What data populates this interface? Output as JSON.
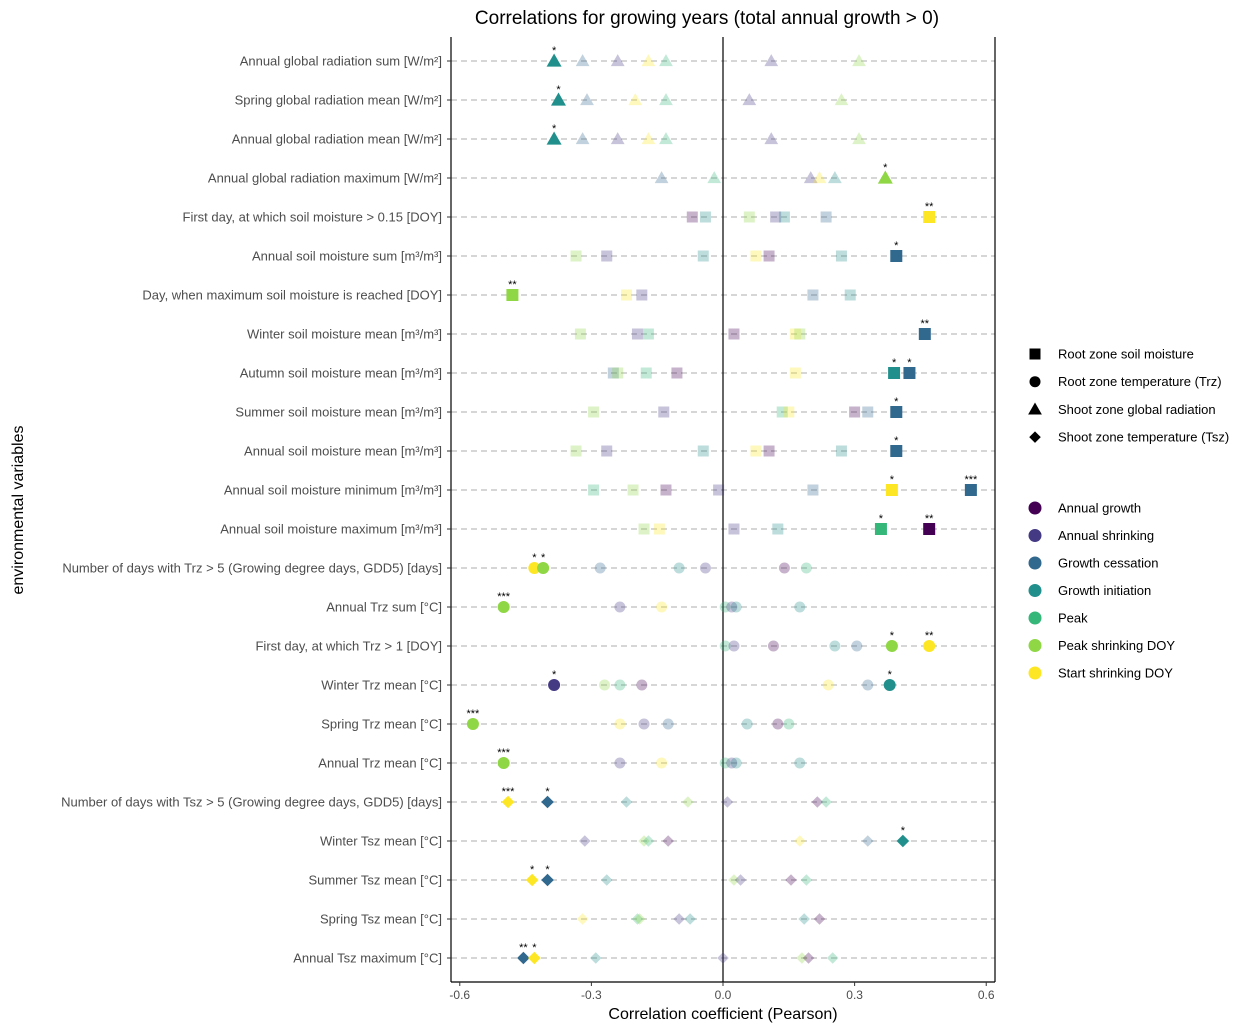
{
  "chart_data": {
    "type": "scatter",
    "title": "Correlations for growing years (total annual growth > 0)",
    "xlabel": "Correlation coefficient (Pearson)",
    "ylabel": "environmental variables",
    "xlim": [
      -0.62,
      0.62
    ],
    "xticks": [
      -0.6,
      -0.3,
      0.0,
      0.3,
      0.6
    ],
    "xtick_labels": [
      "-0.6",
      "-0.3",
      "0.0",
      "0.3",
      "0.6"
    ],
    "grid": "dashed horizontal lines per variable",
    "legend_position": "right",
    "shape_legend": [
      {
        "key": "square",
        "label": "Root zone soil moisture"
      },
      {
        "key": "circle",
        "label": "Root zone temperature (Trz)"
      },
      {
        "key": "triangle",
        "label": "Shoot zone global radiation"
      },
      {
        "key": "diamond",
        "label": "Shoot zone temperature (Tsz)"
      }
    ],
    "color_legend": [
      {
        "key": "ag",
        "label": "Annual growth",
        "color": "#440154"
      },
      {
        "key": "as",
        "label": "Annual shrinking",
        "color": "#443983"
      },
      {
        "key": "gc",
        "label": "Growth cessation",
        "color": "#31688E"
      },
      {
        "key": "gi",
        "label": "Growth initiation",
        "color": "#21908C"
      },
      {
        "key": "pk",
        "label": "Peak",
        "color": "#35B779"
      },
      {
        "key": "ps",
        "label": "Peak shrinking DOY",
        "color": "#8FD744"
      },
      {
        "key": "ss",
        "label": "Start shrinking DOY",
        "color": "#FDE725"
      }
    ],
    "variables": [
      {
        "label": "Annual global radiation sum [W/m²]",
        "shape": "triangle",
        "points": [
          {
            "x": -0.385,
            "c": "gi",
            "sig": "*"
          },
          {
            "x": -0.32,
            "c": "gc"
          },
          {
            "x": -0.24,
            "c": "as"
          },
          {
            "x": -0.17,
            "c": "ss"
          },
          {
            "x": -0.13,
            "c": "pk"
          },
          {
            "x": 0.11,
            "c": "as"
          },
          {
            "x": 0.31,
            "c": "ps"
          }
        ]
      },
      {
        "label": "Spring global radiation mean [W/m²]",
        "shape": "triangle",
        "points": [
          {
            "x": -0.375,
            "c": "gi",
            "sig": "*"
          },
          {
            "x": -0.31,
            "c": "gc"
          },
          {
            "x": -0.2,
            "c": "ss"
          },
          {
            "x": -0.13,
            "c": "pk"
          },
          {
            "x": 0.06,
            "c": "as"
          },
          {
            "x": 0.27,
            "c": "ps"
          }
        ]
      },
      {
        "label": "Annual global radiation mean [W/m²]",
        "shape": "triangle",
        "points": [
          {
            "x": -0.385,
            "c": "gi",
            "sig": "*"
          },
          {
            "x": -0.32,
            "c": "gc"
          },
          {
            "x": -0.24,
            "c": "as"
          },
          {
            "x": -0.17,
            "c": "ss"
          },
          {
            "x": -0.13,
            "c": "pk"
          },
          {
            "x": 0.11,
            "c": "as"
          },
          {
            "x": 0.31,
            "c": "ps"
          }
        ]
      },
      {
        "label": "Annual global radiation maximum [W/m²]",
        "shape": "triangle",
        "points": [
          {
            "x": -0.14,
            "c": "gc"
          },
          {
            "x": -0.02,
            "c": "pk"
          },
          {
            "x": 0.2,
            "c": "as"
          },
          {
            "x": 0.22,
            "c": "ss"
          },
          {
            "x": 0.255,
            "c": "gi"
          },
          {
            "x": 0.37,
            "c": "ps",
            "sig": "*"
          }
        ]
      },
      {
        "label": "First day, at which soil moisture > 0.15 [DOY]",
        "shape": "square",
        "points": [
          {
            "x": -0.07,
            "c": "ag"
          },
          {
            "x": -0.04,
            "c": "gi"
          },
          {
            "x": 0.06,
            "c": "ps"
          },
          {
            "x": 0.12,
            "c": "as"
          },
          {
            "x": 0.14,
            "c": "gi"
          },
          {
            "x": 0.235,
            "c": "gc"
          },
          {
            "x": 0.47,
            "c": "ss",
            "sig": "**"
          }
        ]
      },
      {
        "label": "Annual soil moisture sum [m³/m³]",
        "shape": "square",
        "points": [
          {
            "x": -0.335,
            "c": "ps"
          },
          {
            "x": -0.265,
            "c": "as"
          },
          {
            "x": -0.045,
            "c": "gi"
          },
          {
            "x": 0.075,
            "c": "ss"
          },
          {
            "x": 0.105,
            "c": "ag"
          },
          {
            "x": 0.27,
            "c": "gi"
          },
          {
            "x": 0.395,
            "c": "gc",
            "sig": "*"
          }
        ]
      },
      {
        "label": "Day, when maximum soil moisture is reached [DOY]",
        "shape": "square",
        "points": [
          {
            "x": -0.48,
            "c": "ps",
            "sig": "**"
          },
          {
            "x": -0.22,
            "c": "ss"
          },
          {
            "x": -0.185,
            "c": "as"
          },
          {
            "x": 0.205,
            "c": "gc"
          },
          {
            "x": 0.29,
            "c": "gi"
          }
        ]
      },
      {
        "label": "Winter soil moisture mean [m³/m³]",
        "shape": "square",
        "points": [
          {
            "x": -0.325,
            "c": "ps"
          },
          {
            "x": -0.195,
            "c": "as"
          },
          {
            "x": -0.17,
            "c": "pk"
          },
          {
            "x": 0.025,
            "c": "ag"
          },
          {
            "x": 0.165,
            "c": "ss"
          },
          {
            "x": 0.175,
            "c": "ps"
          },
          {
            "x": 0.46,
            "c": "gc",
            "sig": "**"
          }
        ]
      },
      {
        "label": "Autumn soil moisture mean [m³/m³]",
        "shape": "square",
        "points": [
          {
            "x": -0.25,
            "c": "gc"
          },
          {
            "x": -0.24,
            "c": "ps"
          },
          {
            "x": -0.175,
            "c": "pk"
          },
          {
            "x": -0.105,
            "c": "ag"
          },
          {
            "x": 0.165,
            "c": "ss"
          },
          {
            "x": 0.39,
            "c": "gi",
            "sig": "*"
          },
          {
            "x": 0.425,
            "c": "gc",
            "sig": "*"
          }
        ]
      },
      {
        "label": "Summer soil moisture mean [m³/m³]",
        "shape": "square",
        "points": [
          {
            "x": -0.295,
            "c": "ps"
          },
          {
            "x": -0.135,
            "c": "as"
          },
          {
            "x": 0.135,
            "c": "pk"
          },
          {
            "x": 0.15,
            "c": "ss"
          },
          {
            "x": 0.3,
            "c": "ag"
          },
          {
            "x": 0.33,
            "c": "gc"
          },
          {
            "x": 0.395,
            "c": "gc",
            "sig": "*"
          }
        ]
      },
      {
        "label": "Annual soil moisture mean [m³/m³]",
        "shape": "square",
        "points": [
          {
            "x": -0.335,
            "c": "ps"
          },
          {
            "x": -0.265,
            "c": "as"
          },
          {
            "x": -0.045,
            "c": "gi"
          },
          {
            "x": 0.075,
            "c": "ss"
          },
          {
            "x": 0.105,
            "c": "ag"
          },
          {
            "x": 0.27,
            "c": "gi"
          },
          {
            "x": 0.395,
            "c": "gc",
            "sig": "*"
          }
        ]
      },
      {
        "label": "Annual soil moisture minimum [m³/m³]",
        "shape": "square",
        "points": [
          {
            "x": -0.295,
            "c": "pk"
          },
          {
            "x": -0.205,
            "c": "ps"
          },
          {
            "x": -0.13,
            "c": "ag"
          },
          {
            "x": -0.01,
            "c": "as"
          },
          {
            "x": 0.205,
            "c": "gc"
          },
          {
            "x": 0.385,
            "c": "ss",
            "sig": "*"
          },
          {
            "x": 0.565,
            "c": "gc",
            "sig": "***"
          }
        ]
      },
      {
        "label": "Annual soil moisture maximum [m³/m³]",
        "shape": "square",
        "points": [
          {
            "x": -0.18,
            "c": "ps"
          },
          {
            "x": -0.145,
            "c": "ss"
          },
          {
            "x": 0.025,
            "c": "as"
          },
          {
            "x": 0.125,
            "c": "gi"
          },
          {
            "x": 0.36,
            "c": "pk",
            "sig": "*"
          },
          {
            "x": 0.47,
            "c": "ag",
            "sig": "**"
          }
        ]
      },
      {
        "label": "Number of days with Trz > 5 (Growing degree days, GDD5) [days]",
        "shape": "circle",
        "points": [
          {
            "x": -0.43,
            "c": "ss",
            "sig": "*"
          },
          {
            "x": -0.41,
            "c": "ps",
            "sig": "*"
          },
          {
            "x": -0.28,
            "c": "gc"
          },
          {
            "x": -0.1,
            "c": "gi"
          },
          {
            "x": -0.04,
            "c": "as"
          },
          {
            "x": 0.14,
            "c": "ag"
          },
          {
            "x": 0.19,
            "c": "pk"
          }
        ]
      },
      {
        "label": "Annual Trz sum [°C]",
        "shape": "circle",
        "points": [
          {
            "x": -0.5,
            "c": "ps",
            "sig": "***"
          },
          {
            "x": -0.235,
            "c": "as"
          },
          {
            "x": -0.14,
            "c": "ss"
          },
          {
            "x": 0.005,
            "c": "pk"
          },
          {
            "x": 0.02,
            "c": "as"
          },
          {
            "x": 0.03,
            "c": "gi"
          },
          {
            "x": 0.175,
            "c": "gi"
          }
        ]
      },
      {
        "label": "First day, at which Trz > 1 [DOY]",
        "shape": "circle",
        "points": [
          {
            "x": 0.005,
            "c": "pk"
          },
          {
            "x": 0.025,
            "c": "as"
          },
          {
            "x": 0.115,
            "c": "ag"
          },
          {
            "x": 0.255,
            "c": "gi"
          },
          {
            "x": 0.305,
            "c": "gc"
          },
          {
            "x": 0.385,
            "c": "ps",
            "sig": "*"
          },
          {
            "x": 0.47,
            "c": "ss",
            "sig": "**"
          }
        ]
      },
      {
        "label": "Winter Trz mean [°C]",
        "shape": "circle",
        "points": [
          {
            "x": -0.385,
            "c": "as",
            "sig": "*"
          },
          {
            "x": -0.27,
            "c": "ps"
          },
          {
            "x": -0.235,
            "c": "pk"
          },
          {
            "x": -0.185,
            "c": "ag"
          },
          {
            "x": 0.24,
            "c": "ss"
          },
          {
            "x": 0.33,
            "c": "gc"
          },
          {
            "x": 0.38,
            "c": "gi",
            "sig": "*"
          }
        ]
      },
      {
        "label": "Spring Trz mean [°C]",
        "shape": "circle",
        "points": [
          {
            "x": -0.57,
            "c": "ps",
            "sig": "***"
          },
          {
            "x": -0.235,
            "c": "ss"
          },
          {
            "x": -0.18,
            "c": "as"
          },
          {
            "x": -0.125,
            "c": "gc"
          },
          {
            "x": 0.055,
            "c": "gi"
          },
          {
            "x": 0.125,
            "c": "ag"
          },
          {
            "x": 0.15,
            "c": "pk"
          }
        ]
      },
      {
        "label": "Annual Trz mean [°C]",
        "shape": "circle",
        "points": [
          {
            "x": -0.5,
            "c": "ps",
            "sig": "***"
          },
          {
            "x": -0.235,
            "c": "as"
          },
          {
            "x": -0.14,
            "c": "ss"
          },
          {
            "x": 0.005,
            "c": "pk"
          },
          {
            "x": 0.02,
            "c": "as"
          },
          {
            "x": 0.03,
            "c": "gi"
          },
          {
            "x": 0.175,
            "c": "gi"
          }
        ]
      },
      {
        "label": "Number of days with Tsz > 5 (Growing degree days, GDD5) [days]",
        "shape": "diamond",
        "points": [
          {
            "x": -0.49,
            "c": "ss",
            "sig": "***"
          },
          {
            "x": -0.4,
            "c": "gc",
            "sig": "*"
          },
          {
            "x": -0.22,
            "c": "gi"
          },
          {
            "x": -0.08,
            "c": "ps"
          },
          {
            "x": 0.01,
            "c": "as"
          },
          {
            "x": 0.215,
            "c": "ag"
          },
          {
            "x": 0.235,
            "c": "pk"
          }
        ]
      },
      {
        "label": "Winter Tsz mean [°C]",
        "shape": "diamond",
        "points": [
          {
            "x": -0.315,
            "c": "as"
          },
          {
            "x": -0.18,
            "c": "ps"
          },
          {
            "x": -0.17,
            "c": "pk"
          },
          {
            "x": -0.125,
            "c": "ag"
          },
          {
            "x": 0.175,
            "c": "ss"
          },
          {
            "x": 0.33,
            "c": "gc"
          },
          {
            "x": 0.41,
            "c": "gi",
            "sig": "*"
          }
        ]
      },
      {
        "label": "Summer Tsz mean [°C]",
        "shape": "diamond",
        "points": [
          {
            "x": -0.435,
            "c": "ss",
            "sig": "*"
          },
          {
            "x": -0.4,
            "c": "gc",
            "sig": "*"
          },
          {
            "x": -0.265,
            "c": "gi"
          },
          {
            "x": 0.025,
            "c": "ps"
          },
          {
            "x": 0.04,
            "c": "as"
          },
          {
            "x": 0.155,
            "c": "ag"
          },
          {
            "x": 0.19,
            "c": "pk"
          }
        ]
      },
      {
        "label": "Spring Tsz mean [°C]",
        "shape": "diamond",
        "points": [
          {
            "x": -0.32,
            "c": "ss"
          },
          {
            "x": -0.195,
            "c": "pk"
          },
          {
            "x": -0.19,
            "c": "ps"
          },
          {
            "x": -0.1,
            "c": "as"
          },
          {
            "x": -0.075,
            "c": "gi"
          },
          {
            "x": 0.185,
            "c": "gi"
          },
          {
            "x": 0.22,
            "c": "ag"
          }
        ]
      },
      {
        "label": "Annual Tsz maximum [°C]",
        "shape": "diamond",
        "points": [
          {
            "x": -0.455,
            "c": "gc",
            "sig": "**"
          },
          {
            "x": -0.43,
            "c": "ss",
            "sig": "*"
          },
          {
            "x": -0.29,
            "c": "gi"
          },
          {
            "x": 0.0,
            "c": "as"
          },
          {
            "x": 0.18,
            "c": "ps"
          },
          {
            "x": 0.195,
            "c": "ag"
          },
          {
            "x": 0.25,
            "c": "pk"
          }
        ]
      }
    ]
  }
}
